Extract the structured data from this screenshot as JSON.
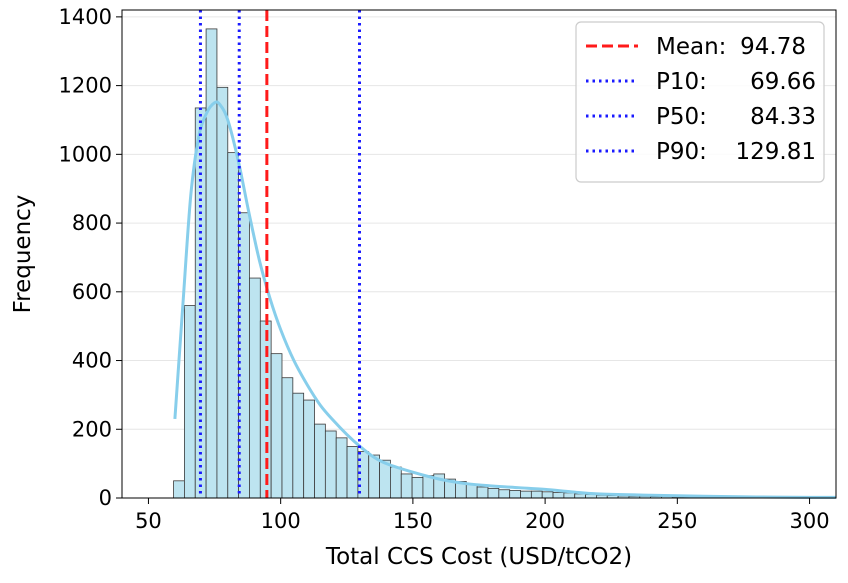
{
  "chart_data": {
    "type": "bar",
    "subtype": "histogram_with_kde",
    "xlabel": "Total CCS Cost (USD/tCO2)",
    "ylabel": "Frequency",
    "xlim": [
      40,
      310
    ],
    "ylim": [
      0,
      1420
    ],
    "xticks": [
      50,
      100,
      150,
      200,
      250,
      300
    ],
    "yticks": [
      0,
      200,
      400,
      600,
      800,
      1000,
      1200,
      1400
    ],
    "grid": true,
    "bin_width": 4.1,
    "bins_start": 59.5,
    "values": [
      50,
      560,
      1135,
      1365,
      1195,
      1005,
      830,
      640,
      515,
      420,
      350,
      305,
      285,
      215,
      195,
      175,
      150,
      135,
      125,
      110,
      90,
      70,
      60,
      65,
      70,
      55,
      48,
      40,
      32,
      28,
      24,
      22,
      20,
      20,
      18,
      16,
      15,
      12,
      10,
      8,
      7,
      6,
      5,
      5,
      4,
      4,
      3,
      3,
      3,
      2,
      2,
      2,
      2,
      2,
      1,
      1,
      1,
      1,
      1,
      1,
      1
    ],
    "kde": {
      "x": [
        60,
        63,
        66,
        69,
        72,
        75,
        77,
        80,
        84,
        88,
        92,
        96,
        100,
        105,
        110,
        115,
        120,
        125,
        130,
        135,
        140,
        150,
        160,
        170,
        180,
        190,
        200,
        210,
        220,
        240,
        260,
        280,
        300,
        310
      ],
      "y": [
        230,
        560,
        880,
        1050,
        1120,
        1150,
        1145,
        1100,
        980,
        830,
        690,
        580,
        490,
        400,
        330,
        270,
        225,
        185,
        150,
        120,
        100,
        75,
        55,
        42,
        35,
        30,
        25,
        18,
        12,
        8,
        5,
        3,
        2,
        2
      ]
    },
    "vlines": [
      {
        "label": "Mean",
        "value": 94.78,
        "value_text": "94.78",
        "style": "dashed",
        "color": "#ff1a1a"
      },
      {
        "label": "P10",
        "value": 69.66,
        "value_text": "69.66",
        "style": "dotted",
        "color": "#1a1aff"
      },
      {
        "label": "P50",
        "value": 84.33,
        "value_text": "84.33",
        "style": "dotted",
        "color": "#1a1aff"
      },
      {
        "label": "P90",
        "value": 129.81,
        "value_text": "129.81",
        "style": "dotted",
        "color": "#1a1aff"
      }
    ],
    "legend_position": "top-right",
    "colors": {
      "bar_fill": "#bde4f0",
      "bar_edge": "#3a3a3a",
      "kde_line": "#87ceeb",
      "grid": "#e6e6e6"
    }
  }
}
